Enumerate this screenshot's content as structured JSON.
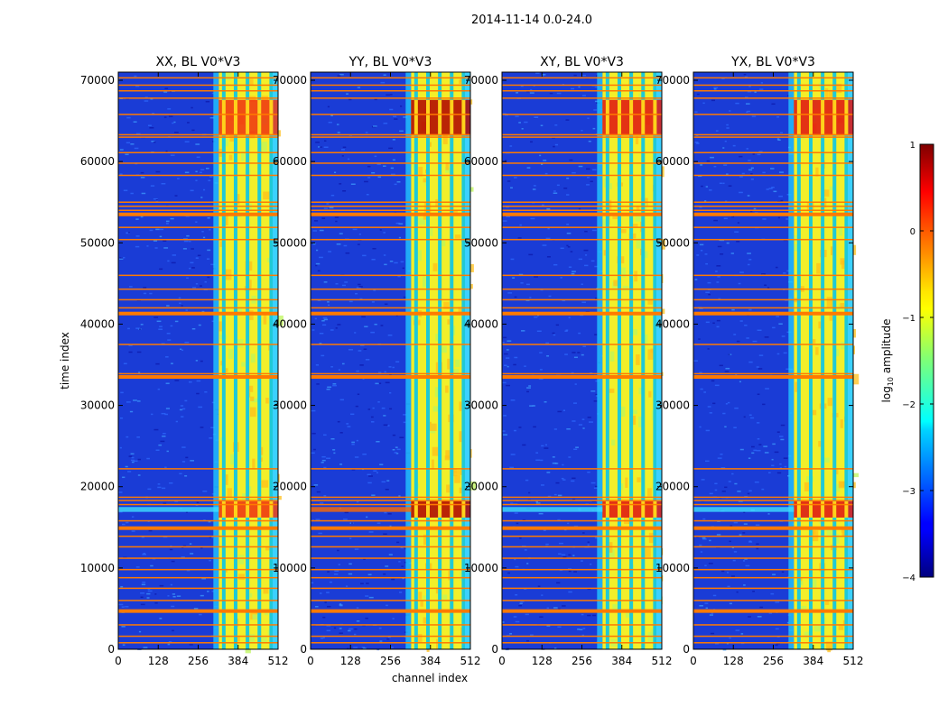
{
  "chart_data": {
    "type": "heatmap",
    "suptitle": "2014-11-14 0.0-24.0",
    "xlabel": "channel index",
    "ylabel": "time index",
    "xlim": [
      0,
      512
    ],
    "ylim": [
      0,
      71000
    ],
    "xticks": [
      0,
      128,
      256,
      384,
      512
    ],
    "yticks": [
      0,
      10000,
      20000,
      30000,
      40000,
      50000,
      60000,
      70000
    ],
    "panels": [
      {
        "title": "XX, BL V0*V3",
        "pol": "XX",
        "flare_level": 0.75
      },
      {
        "title": "YY, BL V0*V3",
        "pol": "YY",
        "flare_level": 1.0
      },
      {
        "title": "XY, BL V0*V3",
        "pol": "XY",
        "flare_level": 0.85
      },
      {
        "title": "YX, BL V0*V3",
        "pol": "YX",
        "flare_level": 0.9
      }
    ],
    "signal_band_channels": [
      322,
      512
    ],
    "dark_stripe_channels": [
      338,
      376,
      414,
      452,
      490
    ],
    "flagged_time_rows": [
      800,
      1600,
      3000,
      4700,
      6000,
      7500,
      8800,
      9800,
      11200,
      12600,
      13900,
      14900,
      15800,
      17800,
      18300,
      18700,
      22200,
      33500,
      33900,
      37500,
      41300,
      42000,
      43000,
      44300,
      46000,
      50400,
      51900,
      53500,
      54000,
      54500,
      55000,
      58300,
      59800,
      61100,
      63000,
      63300,
      65800,
      67800,
      68700,
      69400,
      70300
    ],
    "thick_flag_rows": [
      4700,
      14900,
      33500,
      41300,
      53500
    ],
    "bright_time_bands": [
      [
        16200,
        18200
      ],
      [
        63200,
        67600
      ]
    ],
    "colorbar": {
      "label": "log10 amplitude",
      "label_main": "log",
      "label_sub": "10",
      "label_rest": " amplitude",
      "range": [
        -4,
        1
      ],
      "ticks": [
        1,
        0,
        -1,
        -2,
        -3,
        -4
      ],
      "tick_labels": [
        "1",
        "0",
        "−1",
        "−2",
        "−3",
        "−4"
      ],
      "colormap": "jet"
    }
  }
}
